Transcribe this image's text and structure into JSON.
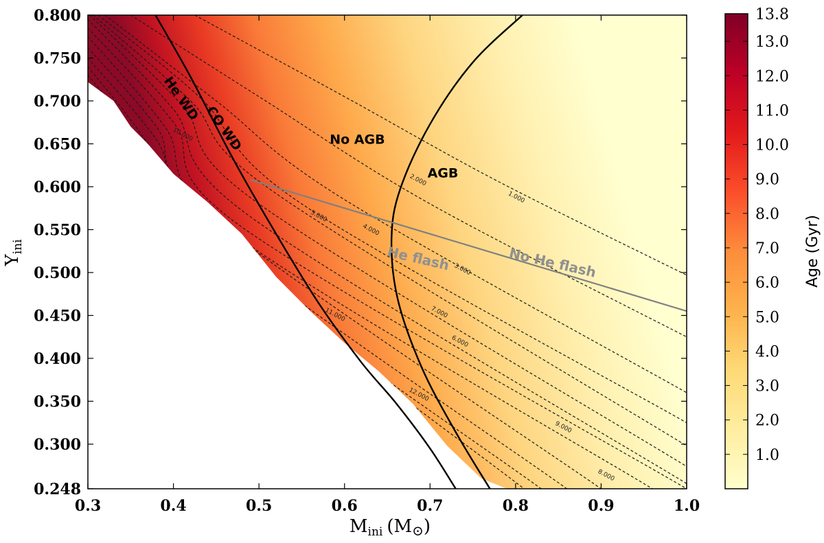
{
  "chart_data": {
    "type": "heatmap",
    "xlabel": "M",
    "xlabel_sub": "ini",
    "xlabel_unit": "(M",
    "xlabel_unit_symbol": "⊙",
    "xlabel_unit_close": ")",
    "ylabel": "Y",
    "ylabel_sub": "ini",
    "xlim": [
      0.3,
      1.0
    ],
    "ylim": [
      0.248,
      0.8
    ],
    "x_ticks": [
      {
        "v": 0.3,
        "t": "0.3"
      },
      {
        "v": 0.4,
        "t": "0.4"
      },
      {
        "v": 0.5,
        "t": "0.5"
      },
      {
        "v": 0.6,
        "t": "0.6"
      },
      {
        "v": 0.7,
        "t": "0.7"
      },
      {
        "v": 0.8,
        "t": "0.8"
      },
      {
        "v": 0.9,
        "t": "0.9"
      },
      {
        "v": 1.0,
        "t": "1.0"
      }
    ],
    "y_ticks": [
      {
        "v": 0.8,
        "t": "0.800"
      },
      {
        "v": 0.75,
        "t": "0.750"
      },
      {
        "v": 0.7,
        "t": "0.700"
      },
      {
        "v": 0.65,
        "t": "0.650"
      },
      {
        "v": 0.6,
        "t": "0.600"
      },
      {
        "v": 0.55,
        "t": "0.550"
      },
      {
        "v": 0.5,
        "t": "0.500"
      },
      {
        "v": 0.45,
        "t": "0.450"
      },
      {
        "v": 0.4,
        "t": "0.400"
      },
      {
        "v": 0.35,
        "t": "0.350"
      },
      {
        "v": 0.3,
        "t": "0.300"
      },
      {
        "v": 0.248,
        "t": "0.248"
      }
    ],
    "colorbar": {
      "title": "Age (Gyr)",
      "range": [
        0.0,
        13.8
      ],
      "ticks": [
        {
          "v": 13.8,
          "t": "13.8"
        },
        {
          "v": 13.0,
          "t": "13.0"
        },
        {
          "v": 12.0,
          "t": "12.0"
        },
        {
          "v": 11.0,
          "t": "11.0"
        },
        {
          "v": 10.0,
          "t": "10.0"
        },
        {
          "v": 9.0,
          "t": "9.0"
        },
        {
          "v": 8.0,
          "t": "8.0"
        },
        {
          "v": 7.0,
          "t": "7.0"
        },
        {
          "v": 6.0,
          "t": "6.0"
        },
        {
          "v": 5.0,
          "t": "5.0"
        },
        {
          "v": 4.0,
          "t": "4.0"
        },
        {
          "v": 3.0,
          "t": "3.0"
        },
        {
          "v": 2.0,
          "t": "2.0"
        },
        {
          "v": 1.0,
          "t": "1.0"
        }
      ],
      "colors": [
        "#ffffcc",
        "#ffeda0",
        "#fed976",
        "#feb24c",
        "#fd8d3c",
        "#fc4e2a",
        "#e31a1c",
        "#bd0026",
        "#800026"
      ]
    },
    "valid_region_lower_boundary": [
      [
        0.3,
        0.722
      ],
      [
        0.33,
        0.7
      ],
      [
        0.35,
        0.67
      ],
      [
        0.37,
        0.65
      ],
      [
        0.4,
        0.615
      ],
      [
        0.44,
        0.582
      ],
      [
        0.48,
        0.545
      ],
      [
        0.52,
        0.495
      ],
      [
        0.56,
        0.455
      ],
      [
        0.6,
        0.418
      ],
      [
        0.64,
        0.385
      ],
      [
        0.68,
        0.347
      ],
      [
        0.72,
        0.298
      ],
      [
        0.76,
        0.26
      ],
      [
        0.79,
        0.248
      ]
    ],
    "age_contours": [
      {
        "age": 1.0,
        "label": "1.000",
        "pts": [
          [
            0.425,
            0.8
          ],
          [
            0.6,
            0.705
          ],
          [
            0.78,
            0.606
          ],
          [
            1.0,
            0.497
          ]
        ],
        "label_at": [
          0.8,
          0.586
        ]
      },
      {
        "age": 2.0,
        "label": "2.000",
        "pts": [
          [
            0.35,
            0.8
          ],
          [
            0.5,
            0.705
          ],
          [
            0.7,
            0.58
          ],
          [
            1.0,
            0.425
          ]
        ],
        "label_at": [
          0.685,
          0.606
        ]
      },
      {
        "age": 3.0,
        "label": "3.000",
        "pts": [
          [
            0.32,
            0.8
          ],
          [
            0.45,
            0.7
          ],
          [
            0.6,
            0.585
          ],
          [
            1.0,
            0.36
          ]
        ],
        "label_at": [
          0.737,
          0.502
        ]
      },
      {
        "age": 4.0,
        "label": "4.000",
        "pts": [
          [
            0.312,
            0.8
          ],
          [
            0.43,
            0.705
          ],
          [
            0.55,
            0.58
          ],
          [
            1.0,
            0.325
          ]
        ],
        "label_at": [
          0.63,
          0.548
        ]
      },
      {
        "age": 5.0,
        "label": "5.000",
        "pts": [
          [
            0.306,
            0.8
          ],
          [
            0.42,
            0.7
          ],
          [
            0.52,
            0.592
          ],
          [
            1.0,
            0.298
          ]
        ],
        "label_at": [
          0.569,
          0.564
        ]
      },
      {
        "age": 6.0,
        "label": "6.000",
        "pts": [
          [
            0.302,
            0.8
          ],
          [
            0.41,
            0.695
          ],
          [
            0.5,
            0.58
          ],
          [
            1.0,
            0.274
          ]
        ],
        "label_at": [
          0.734,
          0.418
        ]
      },
      {
        "age": 7.0,
        "label": "7.000",
        "pts": [
          [
            0.3,
            0.795
          ],
          [
            0.4,
            0.69
          ],
          [
            0.49,
            0.565
          ],
          [
            1.0,
            0.254
          ]
        ],
        "label_at": [
          0.71,
          0.452
        ]
      },
      {
        "age": 8.0,
        "label": "8.000",
        "pts": [
          [
            0.3,
            0.785
          ],
          [
            0.4,
            0.675
          ],
          [
            0.48,
            0.553
          ],
          [
            1.0,
            0.248
          ]
        ],
        "label_at": [
          0.905,
          0.262
        ]
      },
      {
        "age": 9.0,
        "label": "9.000",
        "pts": [
          [
            0.3,
            0.775
          ],
          [
            0.39,
            0.67
          ],
          [
            0.47,
            0.545
          ],
          [
            0.96,
            0.248
          ]
        ],
        "label_at": [
          0.855,
          0.318
        ]
      },
      {
        "age": 10.0,
        "label": "10.000",
        "pts": [
          [
            0.3,
            0.762
          ],
          [
            0.38,
            0.67
          ],
          [
            0.45,
            0.56
          ],
          [
            0.9,
            0.248
          ]
        ],
        "label_at": [
          0.41,
          0.659
        ]
      },
      {
        "age": 11.0,
        "label": "11.000",
        "pts": [
          [
            0.3,
            0.75
          ],
          [
            0.38,
            0.655
          ],
          [
            0.45,
            0.54
          ],
          [
            0.86,
            0.248
          ]
        ],
        "label_at": [
          0.588,
          0.449
        ]
      },
      {
        "age": 12.0,
        "label": "12.000",
        "pts": [
          [
            0.3,
            0.74
          ],
          [
            0.37,
            0.65
          ],
          [
            0.44,
            0.53
          ],
          [
            0.83,
            0.248
          ]
        ],
        "label_at": [
          0.686,
          0.356
        ]
      },
      {
        "age": 13.0,
        "label": "",
        "pts": [
          [
            0.3,
            0.73
          ],
          [
            0.36,
            0.655
          ],
          [
            0.43,
            0.54
          ],
          [
            0.81,
            0.248
          ]
        ],
        "label_at": null
      }
    ],
    "boundaries": [
      {
        "name": "He WD / CO WD",
        "color": "#000000",
        "pts": [
          [
            0.379,
            0.8
          ],
          [
            0.42,
            0.728
          ],
          [
            0.47,
            0.632
          ],
          [
            0.52,
            0.545
          ],
          [
            0.57,
            0.464
          ],
          [
            0.62,
            0.395
          ],
          [
            0.66,
            0.348
          ],
          [
            0.7,
            0.295
          ],
          [
            0.73,
            0.248
          ]
        ]
      },
      {
        "name": "No AGB / AGB",
        "color": "#000000",
        "pts": [
          [
            0.808,
            0.8
          ],
          [
            0.75,
            0.745
          ],
          [
            0.7,
            0.673
          ],
          [
            0.665,
            0.597
          ],
          [
            0.655,
            0.54
          ],
          [
            0.662,
            0.47
          ],
          [
            0.69,
            0.39
          ],
          [
            0.73,
            0.314
          ],
          [
            0.77,
            0.248
          ]
        ]
      },
      {
        "name": "He flash / No He flash",
        "color": "#808080",
        "pts": [
          [
            0.49,
            0.608
          ],
          [
            1.0,
            0.455
          ]
        ]
      }
    ],
    "annotations": [
      {
        "text": "He WD",
        "x": 0.405,
        "y": 0.7,
        "rotation": 55,
        "style": "black"
      },
      {
        "text": "CO WD",
        "x": 0.455,
        "y": 0.665,
        "rotation": 55,
        "style": "black"
      },
      {
        "text": "No AGB",
        "x": 0.615,
        "y": 0.65,
        "rotation": 0,
        "style": "black"
      },
      {
        "text": "AGB",
        "x": 0.715,
        "y": 0.611,
        "rotation": 0,
        "style": "black"
      },
      {
        "text": "He flash",
        "x": 0.685,
        "y": 0.511,
        "rotation": 13,
        "style": "grey"
      },
      {
        "text": "No He flash",
        "x": 0.842,
        "y": 0.506,
        "rotation": 13,
        "style": "grey"
      }
    ]
  }
}
